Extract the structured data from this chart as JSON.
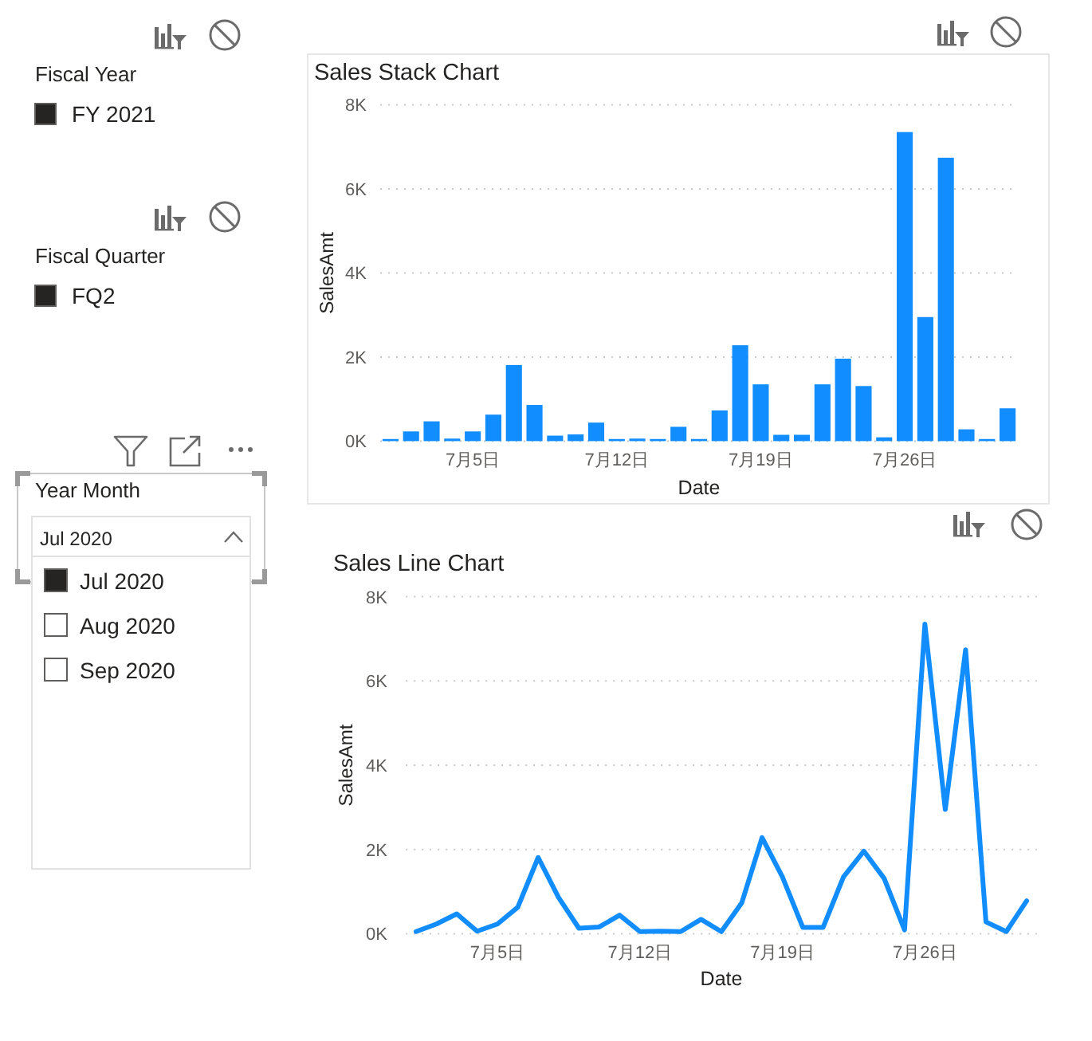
{
  "chart_data": [
    {
      "type": "other",
      "title": "Fiscal Year",
      "categories": [
        "FY 2021"
      ],
      "colors": [
        "#252423"
      ]
    },
    {
      "type": "bar",
      "title": "Sales Stack Chart",
      "xlabel": "Date",
      "ylabel": "SalesAmt",
      "categories": [
        null,
        null,
        null,
        null,
        "7月5日",
        null,
        null,
        null,
        null,
        null,
        null,
        "7月12日",
        null,
        null,
        null,
        null,
        null,
        null,
        "7月19日",
        null,
        null,
        null,
        null,
        null,
        null,
        "7月26日",
        null,
        null,
        null,
        null,
        null
      ],
      "series": [
        {
          "color": "#118dff",
          "values": [
            50,
            230,
            470,
            60,
            230,
            630,
            1810,
            860,
            130,
            160,
            440,
            50,
            60,
            50,
            340,
            50,
            730,
            2280,
            1350,
            150,
            150,
            1350,
            1960,
            1310,
            90,
            7350,
            2950,
            6740,
            280,
            50,
            780
          ]
        }
      ],
      "ylim": [
        0,
        8000
      ],
      "yticks": [
        {
          "value": 0,
          "label": "0K"
        },
        {
          "value": 2000,
          "label": "2K"
        },
        {
          "value": 4000,
          "label": "4K"
        },
        {
          "value": 6000,
          "label": "6K"
        },
        {
          "value": 8000,
          "label": "8K"
        }
      ],
      "grid": "y"
    },
    {
      "type": "other",
      "title": "Fiscal Quarter",
      "categories": [
        "FQ2"
      ],
      "colors": [
        "#252423"
      ]
    },
    {
      "type": "other",
      "title": "Year Month",
      "subtitle": "Jul 2020",
      "categories": [
        "Jul 2020",
        "Aug 2020",
        "Sep 2020"
      ],
      "colors": [
        "#252423",
        "#ffffff",
        "#ffffff"
      ]
    },
    {
      "type": "line",
      "title": "Sales Line Chart",
      "xlabel": "Date",
      "ylabel": "SalesAmt",
      "categories": [
        null,
        null,
        null,
        null,
        "7月5日",
        null,
        null,
        null,
        null,
        null,
        null,
        "7月12日",
        null,
        null,
        null,
        null,
        null,
        null,
        "7月19日",
        null,
        null,
        null,
        null,
        null,
        null,
        "7月26日",
        null,
        null,
        null,
        null,
        null
      ],
      "series": [
        {
          "color": "#118dff",
          "values": [
            50,
            230,
            470,
            60,
            230,
            630,
            1810,
            860,
            130,
            160,
            440,
            50,
            60,
            50,
            340,
            50,
            730,
            2280,
            1350,
            150,
            150,
            1350,
            1960,
            1310,
            90,
            7350,
            2950,
            6740,
            280,
            50,
            780
          ]
        }
      ],
      "ylim": [
        0,
        8000
      ],
      "yticks": [
        {
          "value": 0,
          "label": "0K"
        },
        {
          "value": 2000,
          "label": "2K"
        },
        {
          "value": 4000,
          "label": "4K"
        },
        {
          "value": 6000,
          "label": "6K"
        },
        {
          "value": 8000,
          "label": "8K"
        }
      ],
      "grid": "y"
    }
  ]
}
